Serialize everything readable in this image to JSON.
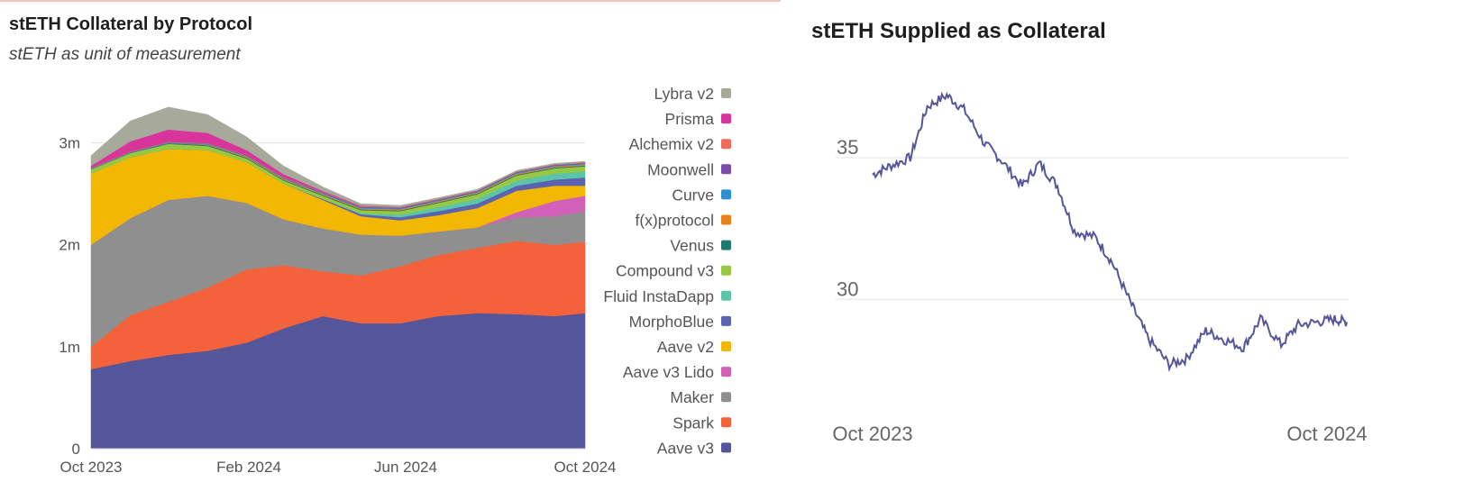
{
  "left": {
    "title": "stETH Collateral by Protocol",
    "subtitle": "stETH as unit of measurement"
  },
  "right": {
    "title": "stETH Supplied as Collateral"
  },
  "chart_data": [
    {
      "type": "area",
      "stacked": true,
      "title": "stETH Collateral by Protocol",
      "subtitle": "stETH as unit of measurement",
      "x_ticks": [
        "Oct 2023",
        "Feb 2024",
        "Jun 2024",
        "Oct 2024"
      ],
      "y_ticks": [
        {
          "value": 0,
          "label": "0"
        },
        {
          "value": 1000000,
          "label": "1m"
        },
        {
          "value": 2000000,
          "label": "2m"
        },
        {
          "value": 3000000,
          "label": "3m"
        }
      ],
      "ylim": [
        0,
        3500000
      ],
      "x": [
        "2023-10-01",
        "2023-11-01",
        "2023-12-01",
        "2024-01-01",
        "2024-02-01",
        "2024-03-01",
        "2024-04-01",
        "2024-05-01",
        "2024-06-01",
        "2024-07-01",
        "2024-08-01",
        "2024-09-01",
        "2024-10-01",
        "2024-10-25"
      ],
      "grid": true,
      "legend_position": "right",
      "series": [
        {
          "name": "Aave v3",
          "color": "#55559a",
          "values": [
            780000,
            860000,
            920000,
            960000,
            1040000,
            1180000,
            1300000,
            1230000,
            1230000,
            1300000,
            1330000,
            1320000,
            1300000,
            1330000
          ]
        },
        {
          "name": "Spark",
          "color": "#f4623c",
          "values": [
            220000,
            450000,
            520000,
            620000,
            720000,
            620000,
            440000,
            470000,
            560000,
            600000,
            640000,
            720000,
            700000,
            700000
          ]
        },
        {
          "name": "Maker",
          "color": "#8f8f8f",
          "values": [
            1000000,
            950000,
            1000000,
            900000,
            650000,
            450000,
            420000,
            400000,
            300000,
            230000,
            200000,
            230000,
            280000,
            300000
          ]
        },
        {
          "name": "Aave v3 Lido",
          "color": "#d060b8",
          "values": [
            0,
            0,
            0,
            0,
            0,
            0,
            0,
            0,
            0,
            0,
            0,
            50000,
            150000,
            150000
          ]
        },
        {
          "name": "Aave v2",
          "color": "#f2b700",
          "values": [
            700000,
            600000,
            500000,
            450000,
            400000,
            350000,
            280000,
            180000,
            150000,
            160000,
            190000,
            210000,
            150000,
            100000
          ]
        },
        {
          "name": "MorphoBlue",
          "color": "#5b63b0",
          "values": [
            0,
            0,
            0,
            0,
            0,
            0,
            10000,
            20000,
            30000,
            40000,
            45000,
            50000,
            60000,
            80000
          ]
        },
        {
          "name": "Fluid InstaDapp",
          "color": "#5cc4a8",
          "values": [
            0,
            0,
            0,
            0,
            0,
            0,
            0,
            10000,
            25000,
            40000,
            45000,
            50000,
            60000,
            60000
          ]
        },
        {
          "name": "Compound v3",
          "color": "#96c844",
          "values": [
            40000,
            40000,
            50000,
            40000,
            35000,
            30000,
            30000,
            30000,
            35000,
            40000,
            45000,
            50000,
            50000,
            50000
          ]
        },
        {
          "name": "Venus",
          "color": "#1f7a6e",
          "values": [
            5000,
            5000,
            8000,
            8000,
            8000,
            8000,
            8000,
            8000,
            8000,
            8000,
            8000,
            8000,
            8000,
            8000
          ]
        },
        {
          "name": "f(x)protocol",
          "color": "#e8831c",
          "values": [
            0,
            0,
            0,
            5000,
            10000,
            10000,
            10000,
            10000,
            10000,
            10000,
            10000,
            10000,
            10000,
            10000
          ]
        },
        {
          "name": "Curve",
          "color": "#2f8fd0",
          "values": [
            5000,
            5000,
            8000,
            10000,
            10000,
            10000,
            10000,
            10000,
            10000,
            10000,
            10000,
            10000,
            10000,
            10000
          ]
        },
        {
          "name": "Moonwell",
          "color": "#7b4aa8",
          "values": [
            0,
            0,
            0,
            0,
            0,
            0,
            5000,
            5000,
            5000,
            5000,
            5000,
            5000,
            5000,
            5000
          ]
        },
        {
          "name": "Alchemix v2",
          "color": "#ef6b5b",
          "values": [
            5000,
            5000,
            5000,
            5000,
            5000,
            5000,
            5000,
            5000,
            5000,
            5000,
            5000,
            5000,
            5000,
            5000
          ]
        },
        {
          "name": "Prisma",
          "color": "#d8359c",
          "values": [
            20000,
            100000,
            120000,
            100000,
            50000,
            30000,
            10000,
            5000,
            3000,
            2000,
            1000,
            1000,
            1000,
            1000
          ]
        },
        {
          "name": "Lybra v2",
          "color": "#a7a99b",
          "values": [
            100000,
            200000,
            220000,
            180000,
            130000,
            80000,
            40000,
            20000,
            15000,
            12000,
            10000,
            10000,
            10000,
            10000
          ]
        }
      ]
    },
    {
      "type": "line",
      "title": "stETH Supplied as Collateral",
      "x_ticks": [
        "Oct 2023",
        "Oct 2024"
      ],
      "y_ticks": [
        {
          "value": 30,
          "label": "30"
        },
        {
          "value": 35,
          "label": "35"
        }
      ],
      "ylim": [
        26.1,
        37.7
      ],
      "grid": true,
      "series": [
        {
          "name": "",
          "color": "#55559a",
          "x": [
            "2023-10-01",
            "2023-10-15",
            "2023-11-01",
            "2023-11-15",
            "2023-12-01",
            "2023-12-15",
            "2024-01-01",
            "2024-01-15",
            "2024-02-01",
            "2024-02-15",
            "2024-03-01",
            "2024-03-15",
            "2024-04-01",
            "2024-04-15",
            "2024-05-01",
            "2024-05-15",
            "2024-06-01",
            "2024-06-15",
            "2024-07-01",
            "2024-07-15",
            "2024-08-01",
            "2024-08-15",
            "2024-09-01",
            "2024-09-15",
            "2024-10-01",
            "2024-10-15",
            "2024-10-25"
          ],
          "values": [
            34.4,
            34.7,
            35.0,
            36.8,
            37.2,
            36.7,
            35.5,
            34.9,
            34.0,
            34.8,
            34.0,
            32.4,
            32.2,
            31.3,
            29.8,
            28.6,
            27.7,
            27.9,
            28.9,
            28.6,
            28.3,
            29.3,
            28.4,
            29.1,
            29.2,
            29.3,
            29.2
          ]
        }
      ]
    }
  ]
}
